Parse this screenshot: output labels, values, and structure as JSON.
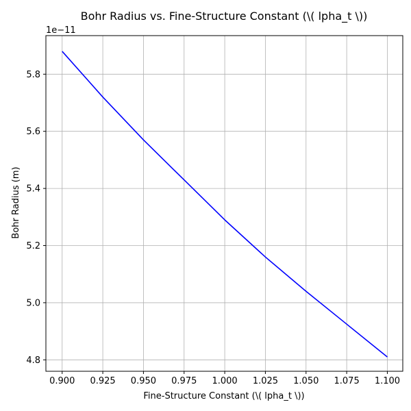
{
  "chart_data": {
    "type": "line",
    "title": "Bohr Radius vs. Fine-Structure Constant (\\( \u0007lpha_t \\))",
    "xlabel": "Fine-Structure Constant (\\( \u0007lpha_t \\))",
    "ylabel": "Bohr Radius (m)",
    "y_offset_label": "1e−11",
    "xlim": [
      0.89,
      1.1095
    ],
    "ylim": [
      4.76,
      5.935
    ],
    "grid": true,
    "x_ticks": [
      0.9,
      0.925,
      0.95,
      0.975,
      1.0,
      1.025,
      1.05,
      1.075,
      1.1
    ],
    "x_tick_labels": [
      "0.900",
      "0.925",
      "0.950",
      "0.975",
      "1.000",
      "1.025",
      "1.050",
      "1.075",
      "1.100"
    ],
    "y_ticks": [
      4.8,
      5.0,
      5.2,
      5.4,
      5.6,
      5.8
    ],
    "y_tick_labels": [
      "4.8",
      "5.0",
      "5.2",
      "5.4",
      "5.6",
      "5.8"
    ],
    "series": [
      {
        "color": "#0000ff",
        "x": [
          0.9,
          0.925,
          0.95,
          0.975,
          1.0,
          1.025,
          1.05,
          1.075,
          1.1
        ],
        "y": [
          5.88,
          5.72,
          5.57,
          5.43,
          5.29,
          5.16,
          5.04,
          4.925,
          4.81
        ]
      }
    ]
  }
}
